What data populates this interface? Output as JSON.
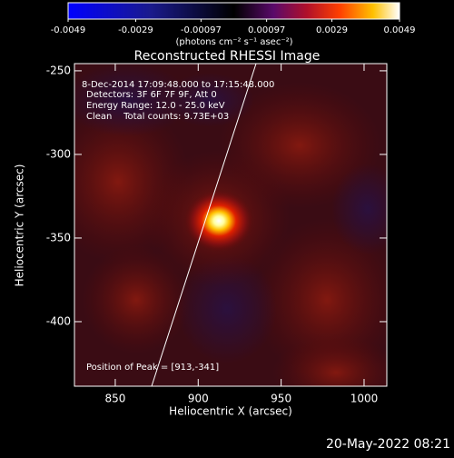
{
  "chart_data": {
    "type": "image",
    "title": "Reconstructed RHESSI Image",
    "colorbar": {
      "lim": [
        -0.0049,
        0.0049
      ],
      "ticks": [
        -0.0049,
        -0.0029,
        -0.00097,
        0.00097,
        0.0029,
        0.0049
      ],
      "label": "(photons cm⁻² s⁻¹ asec⁻²)"
    },
    "xlabel": "Heliocentric X (arcsec)",
    "ylabel": "Heliocentric Y (arcsec)",
    "xlim": [
      825.4,
      1013.7
    ],
    "xticks": [
      850,
      900,
      950,
      1000
    ],
    "ylim": [
      -438.6,
      -245.7
    ],
    "yticks": [
      -250,
      -300,
      -350,
      -400
    ],
    "annotations": [
      "8-Dec-2014 17:09:48.000 to 17:15:48.000",
      "Detectors: 3F 6F 7F 9F, Att 0",
      "Energy Range: 12.0 - 25.0 keV",
      "Clean    Total counts: 9.73E+03"
    ],
    "peak_label": "Position of Peak = [913,-341]",
    "footer": "20-May-2022 08:21"
  }
}
